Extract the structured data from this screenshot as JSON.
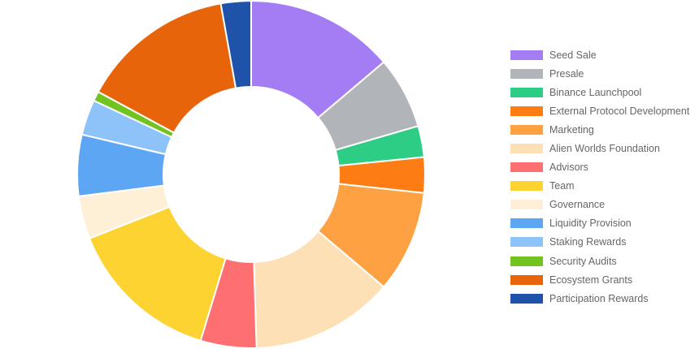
{
  "chart_data": {
    "type": "pie",
    "variant": "doughnut",
    "title": "",
    "legend_position": "right",
    "categories": [
      "Seed Sale",
      "Presale",
      "Binance Launchpool",
      "External Protocol Development",
      "Marketing",
      "Alien Worlds Foundation",
      "Advisors",
      "Team",
      "Governance",
      "Liquidity Provision",
      "Staking Rewards",
      "Security Audits",
      "Ecosystem Grants",
      "Participation Rewards"
    ],
    "values": [
      13.8,
      6.7,
      2.9,
      3.3,
      9.5,
      13.3,
      5.2,
      14.3,
      4.0,
      5.7,
      3.3,
      0.9,
      14.3,
      2.8
    ],
    "colors": [
      "#a47df5",
      "#b1b5ba",
      "#2ecd85",
      "#fd7c14",
      "#fda143",
      "#fde0b6",
      "#fe6f71",
      "#fdd332",
      "#fef0d6",
      "#5da6f4",
      "#8ec3fa",
      "#72c31f",
      "#e8640a",
      "#1f53a9"
    ]
  }
}
